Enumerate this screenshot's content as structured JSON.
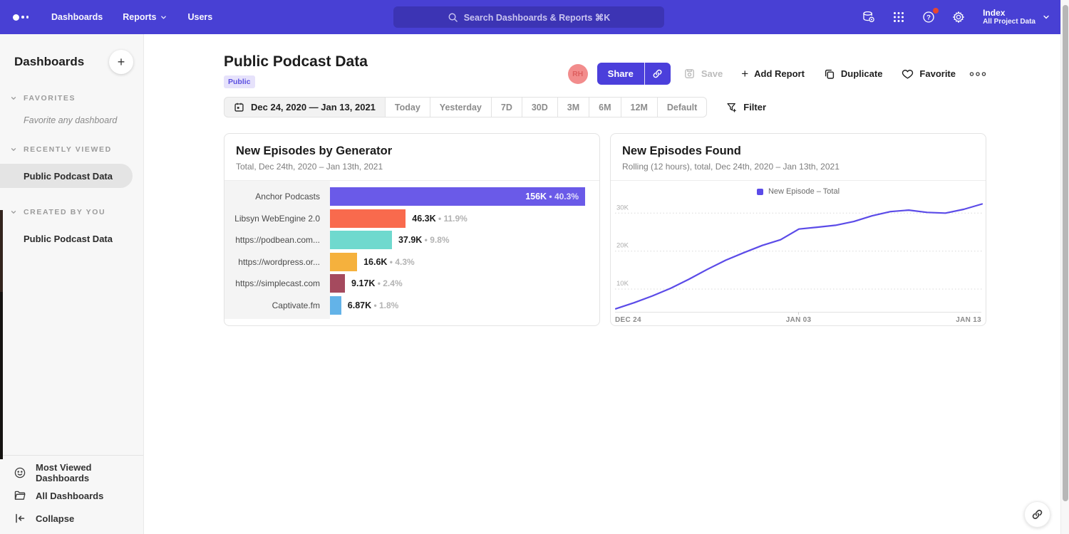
{
  "topnav": {
    "nav_items": [
      {
        "label": "Dashboards",
        "caret": false
      },
      {
        "label": "Reports",
        "caret": true
      },
      {
        "label": "Users",
        "caret": false
      }
    ],
    "search_placeholder": "Search Dashboards & Reports ⌘K",
    "right_icons": [
      "database-icon",
      "apps-grid-icon",
      "help-icon",
      "settings-icon"
    ],
    "help_has_notification": true,
    "workspace_name": "Index",
    "workspace_subtitle": "All Project Data"
  },
  "sidebar": {
    "title": "Dashboards",
    "add_label": "+",
    "sections": [
      {
        "label": "FAVORITES",
        "empty_text": "Favorite any dashboard",
        "items": []
      },
      {
        "label": "RECENTLY VIEWED",
        "empty_text": "",
        "items": [
          {
            "label": "Public Podcast Data",
            "selected": true
          }
        ]
      },
      {
        "label": "CREATED BY YOU",
        "empty_text": "",
        "items": [
          {
            "label": "Public Podcast Data",
            "selected": false
          }
        ]
      }
    ],
    "footer_items": [
      {
        "icon": "smiley-icon",
        "label": "Most Viewed Dashboards"
      },
      {
        "icon": "folder-icon",
        "label": "All Dashboards"
      },
      {
        "icon": "collapse-icon",
        "label": "Collapse"
      }
    ]
  },
  "header": {
    "title": "Public Podcast Data",
    "badge": "Public",
    "avatar_initials": "RH",
    "share_label": "Share",
    "save_label": "Save",
    "add_report_label": "Add Report",
    "duplicate_label": "Duplicate",
    "favorite_label": "Favorite"
  },
  "datebar": {
    "date_range": "Dec 24, 2020 — Jan 13, 2021",
    "presets": [
      "Today",
      "Yesterday",
      "7D",
      "30D",
      "3M",
      "6M",
      "12M",
      "Default"
    ],
    "filter_label": "Filter"
  },
  "colors": {
    "topnav": "#4840D4",
    "search_bg": "#3C34B4",
    "share_button": "#4B3FDB",
    "avatar_bg": "#F28C8C",
    "badge_bg": "#E6E2FB",
    "badge_text": "#5B4FE0",
    "line": "#5B4BE8",
    "notification_dot": "#E8472F"
  },
  "chart_data": [
    {
      "type": "bar",
      "orientation": "horizontal",
      "title": "New Episodes by Generator",
      "subtitle": "Total, Dec 24th, 2020 – Jan 13th, 2021",
      "categories": [
        "Anchor Podcasts",
        "Libsyn WebEngine 2.0",
        "https://podbean.com...",
        "https://wordpress.or...",
        "https://simplecast.com",
        "Captivate.fm"
      ],
      "values": [
        156000,
        46300,
        37900,
        16600,
        9170,
        6870
      ],
      "value_labels": [
        "156K",
        "46.3K",
        "37.9K",
        "16.6K",
        "9.17K",
        "6.87K"
      ],
      "percent_labels": [
        "40.3%",
        "11.9%",
        "9.8%",
        "4.3%",
        "2.4%",
        "1.8%"
      ],
      "colors": [
        "#6A5AE8",
        "#F96A4D",
        "#6FD9CE",
        "#F5B13D",
        "#A54A5E",
        "#63B3E8"
      ],
      "xlim": [
        0,
        156000
      ]
    },
    {
      "type": "line",
      "title": "New Episodes Found",
      "subtitle": "Rolling (12 hours), total, Dec 24th, 2020 – Jan 13th, 2021",
      "legend": [
        {
          "label": "New Episode – Total",
          "color": "#5B4BE8"
        }
      ],
      "x": [
        "Dec 24",
        "Dec 25",
        "Dec 26",
        "Dec 27",
        "Dec 28",
        "Dec 29",
        "Dec 30",
        "Dec 31",
        "Jan 01",
        "Jan 02",
        "Jan 03",
        "Jan 04",
        "Jan 05",
        "Jan 06",
        "Jan 07",
        "Jan 08",
        "Jan 09",
        "Jan 10",
        "Jan 11",
        "Jan 12",
        "Jan 13"
      ],
      "values": [
        4800,
        6400,
        8200,
        10200,
        12600,
        15200,
        17600,
        19600,
        21500,
        23000,
        25800,
        26300,
        26800,
        27800,
        29300,
        30400,
        30800,
        30200,
        30000,
        31000,
        32400
      ],
      "x_ticks": [
        "DEC 24",
        "JAN 03",
        "JAN 13"
      ],
      "y_ticks": [
        "10K",
        "20K",
        "30K"
      ],
      "y_gridlines": [
        10000,
        20000,
        30000
      ],
      "ylim": [
        4000,
        34000
      ],
      "grid": "dotted-horizontal",
      "legend_position": "top-center"
    }
  ]
}
